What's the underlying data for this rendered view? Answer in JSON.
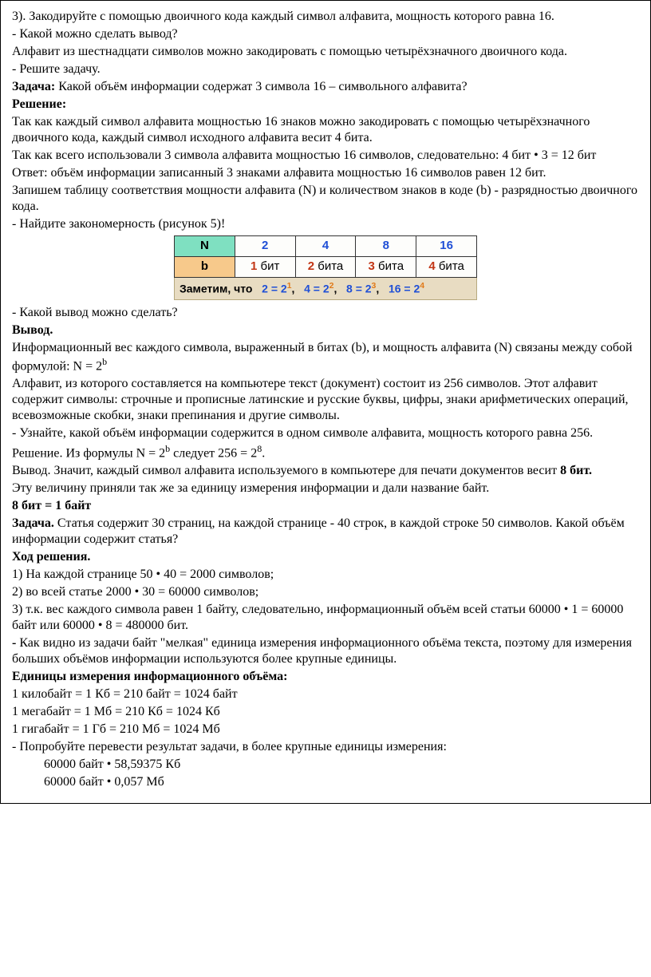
{
  "p": {
    "l01": "3). Закодируйте с помощью двоичного кода каждый символ алфавита, мощность которого равна 16.",
    "l02": "- Какой можно сделать вывод?",
    "l03": "Алфавит из шестнадцати символов можно закодировать с помощью четырёхзначного двоичного кода.",
    "l04": "- Решите задачу.",
    "l05a": "Задача:",
    "l05b": " Какой объём информации содержат 3 символа 16 – символьного алфавита?",
    "l06": "Решение:",
    "l07": "Так как каждый символ алфавита мощностью 16 знаков можно закодировать с помощью четырёхзначного двоичного кода, каждый символ исходного алфавита весит 4 бита.",
    "l08": "Так как всего использовали 3 символа алфавита мощностью 16 символов, следовательно: 4 бит • 3 = 12 бит",
    "l09": "Ответ: объём информации записанный 3 знаками алфавита мощностью 16 символов равен 12 бит.",
    "l10": "Запишем таблицу соответствия мощности алфавита (N) и количеством знаков в коде (b) - разрядностью двоичного кода.",
    "l11": "- Найдите закономерность (рисунок 5)!",
    "l12": "- Какой вывод можно сделать?",
    "l13": "Вывод.",
    "l14a": "Информационный вес каждого символа, выраженный в битах (b), и мощность алфавита (N) связаны между собой формулой: N = 2",
    "l14b": "b",
    "l15": "Алфавит, из которого составляется на компьютере текст (документ) состоит из 256 символов. Этот алфавит содержит символы: строчные и прописные латинские и русские буквы, цифры, знаки арифметических операций, всевозможные скобки, знаки препинания и другие символы.",
    "l16": "- Узнайте, какой объём информации содержится в одном символе алфавита, мощность которого равна 256.",
    "l17a": "Решение. Из формулы N = 2",
    "l17b": "b",
    "l17c": " следует 256 = 2",
    "l17d": "8",
    "l17e": ".",
    "l18a": "Вывод. Значит, каждый символ алфавита используемого в компьютере для печати документов весит ",
    "l18b": "8 бит.",
    "l19": "Эту величину приняли так же за единицу измерения информации и дали название байт.",
    "l20": "8 бит = 1 байт",
    "l21a": "Задача.",
    "l21b": " Статья содержит 30 страниц, на каждой странице - 40 строк, в каждой строке 50 символов. Какой объём информации содержит статья?",
    "l22": "Ход решения.",
    "l23": "1) На каждой странице 50 • 40 = 2000 символов;",
    "l24": "2) во всей статье 2000 • 30 = 60000 символов;",
    "l25": "3) т.к. вес каждого символа равен 1 байту, следовательно, информационный объём всей статьи 60000 • 1 = 60000 байт или 60000 • 8 = 480000 бит.",
    "l26a": "-",
    "l26b": " Как видно из задачи байт \"мелкая\" единица измерения информационного объёма текста, поэтому для измерения больших объёмов информации используются более крупные единицы.",
    "l27": "Единицы измерения информационного объёма:",
    "l28": "1 килобайт = 1 Кб = 210 байт = 1024 байт",
    "l29": "1 мегабайт = 1 Мб = 210 Кб = 1024 Кб",
    "l30": "1 гигабайт = 1 Гб = 210 Мб = 1024 Мб",
    "l31": "- Попробуйте перевести результат задачи, в более крупные единицы измерения:",
    "l32": "60000 байт • 58,59375 Кб",
    "l33": "60000 байт • 0,057 Мб"
  },
  "table": {
    "headerN": "N",
    "headerB": "b",
    "N": [
      "2",
      "4",
      "8",
      "16"
    ],
    "b_num": [
      "1",
      "2",
      "3",
      "4"
    ],
    "b_unit": [
      "бит",
      "бита",
      "бита",
      "бита"
    ],
    "note_label": "Заметим, что",
    "eq": [
      {
        "lhs": "2 = 2",
        "exp": "1"
      },
      {
        "lhs": "4 = 2",
        "exp": "2"
      },
      {
        "lhs": "8 = 2",
        "exp": "3"
      },
      {
        "lhs": "16 = 2",
        "exp": "4"
      }
    ]
  }
}
